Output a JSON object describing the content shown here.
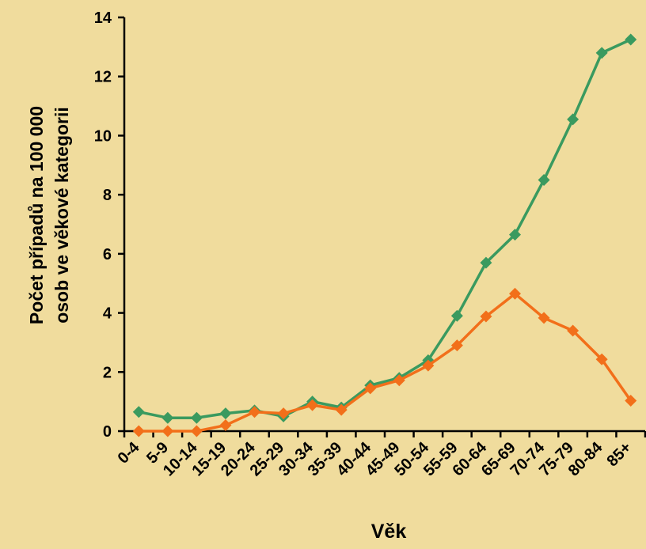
{
  "chart_data": {
    "type": "line",
    "xlabel": "Věk",
    "ylabel_lines": [
      "Počet případů na 100 000",
      "osob ve věkové kategorii"
    ],
    "categories": [
      "0-4",
      "5-9",
      "10-14",
      "15-19",
      "20-24",
      "25-29",
      "30-34",
      "35-39",
      "40-44",
      "45-49",
      "50-54",
      "55-59",
      "60-64",
      "65-69",
      "70-74",
      "75-79",
      "80-84",
      "85+"
    ],
    "ylim": [
      0,
      14
    ],
    "yticks": [
      0,
      2,
      4,
      6,
      8,
      10,
      12,
      14
    ],
    "grid": false,
    "legend": "none",
    "series": [
      {
        "color": "#3A9A5F",
        "values": [
          0.65,
          0.45,
          0.45,
          0.6,
          0.7,
          0.5,
          1.0,
          0.8,
          1.55,
          1.8,
          2.4,
          3.9,
          5.7,
          6.65,
          8.5,
          10.55,
          12.8,
          13.25
        ]
      },
      {
        "color": "#F26F1A",
        "values": [
          0.0,
          0.0,
          0.0,
          0.2,
          0.65,
          0.6,
          0.88,
          0.72,
          1.45,
          1.72,
          2.22,
          2.9,
          3.88,
          4.65,
          3.83,
          3.4,
          2.43,
          1.03
        ]
      }
    ]
  }
}
